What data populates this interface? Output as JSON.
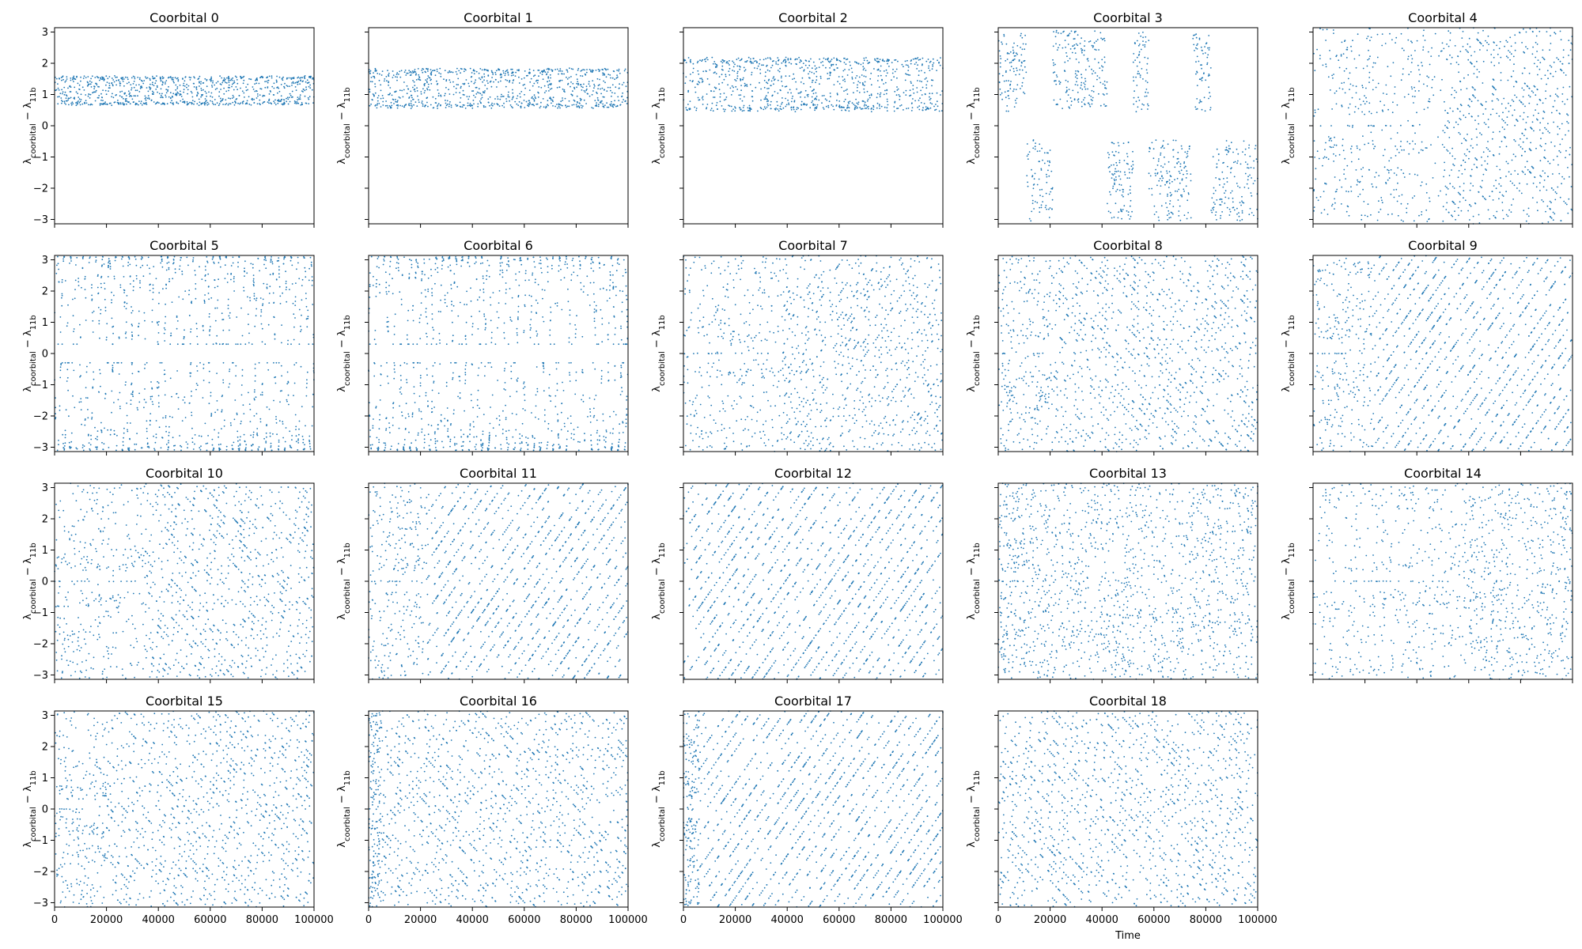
{
  "figure": {
    "background": "#ffffff",
    "point_color": "#1f77b4"
  },
  "chart_data": {
    "type": "scatter",
    "grid": false,
    "point_color": "#1f77b4",
    "xlabel": "Time",
    "ylabel": "λ_coorbital − λ_11b",
    "ylabel_parts": {
      "sym": "λ",
      "sub1": "coorbital",
      "minus": " − ",
      "sub2": "11b"
    },
    "xlim": [
      0,
      100000
    ],
    "ylim": [
      -3.14,
      3.14
    ],
    "xticks": [
      0,
      20000,
      40000,
      60000,
      80000,
      100000
    ],
    "yticks": [
      -3,
      -2,
      -1,
      0,
      1,
      2,
      3
    ],
    "panels": [
      {
        "title": "Coorbital 0",
        "pattern": "band",
        "band": [
          0.65,
          1.6
        ],
        "transition": 0
      },
      {
        "title": "Coorbital 1",
        "pattern": "band",
        "band": [
          0.55,
          1.85
        ],
        "transition": 0
      },
      {
        "title": "Coorbital 2",
        "pattern": "band",
        "band": [
          0.45,
          2.2
        ],
        "transition": 0
      },
      {
        "title": "Coorbital 3",
        "pattern": "switching",
        "transition": 0
      },
      {
        "title": "Coorbital 4",
        "pattern": "chaotic_to_circulating",
        "transition": 50000,
        "slope": "down"
      },
      {
        "title": "Coorbital 5",
        "pattern": "horseshoe",
        "transition": 0
      },
      {
        "title": "Coorbital 6",
        "pattern": "horseshoe",
        "transition": 0
      },
      {
        "title": "Coorbital 7",
        "pattern": "chaotic_to_circulating",
        "transition": 38000,
        "slope": "up_dash"
      },
      {
        "title": "Coorbital 8",
        "pattern": "chaotic_to_circulating",
        "transition": 20000,
        "slope": "down"
      },
      {
        "title": "Coorbital 9",
        "pattern": "chaotic_to_circulating",
        "transition": 23000,
        "slope": "up"
      },
      {
        "title": "Coorbital 10",
        "pattern": "chaotic_to_circulating",
        "transition": 35000,
        "slope": "down"
      },
      {
        "title": "Coorbital 11",
        "pattern": "chaotic_to_circulating",
        "transition": 22000,
        "slope": "up"
      },
      {
        "title": "Coorbital 12",
        "pattern": "circulating",
        "transition": 0,
        "slope": "up"
      },
      {
        "title": "Coorbital 13",
        "pattern": "chaotic_to_circulating",
        "transition": 11000,
        "slope": "down_steep"
      },
      {
        "title": "Coorbital 14",
        "pattern": "chaotic_to_circulating",
        "transition": 58000,
        "slope": "steep"
      },
      {
        "title": "Coorbital 15",
        "pattern": "chaotic_to_circulating",
        "transition": 20000,
        "slope": "down"
      },
      {
        "title": "Coorbital 16",
        "pattern": "chaotic_to_circulating",
        "transition": 5000,
        "slope": "down"
      },
      {
        "title": "Coorbital 17",
        "pattern": "chaotic_to_circulating",
        "transition": 6000,
        "slope": "up"
      },
      {
        "title": "Coorbital 18",
        "pattern": "circulating",
        "transition": 0,
        "slope": "down"
      }
    ]
  }
}
